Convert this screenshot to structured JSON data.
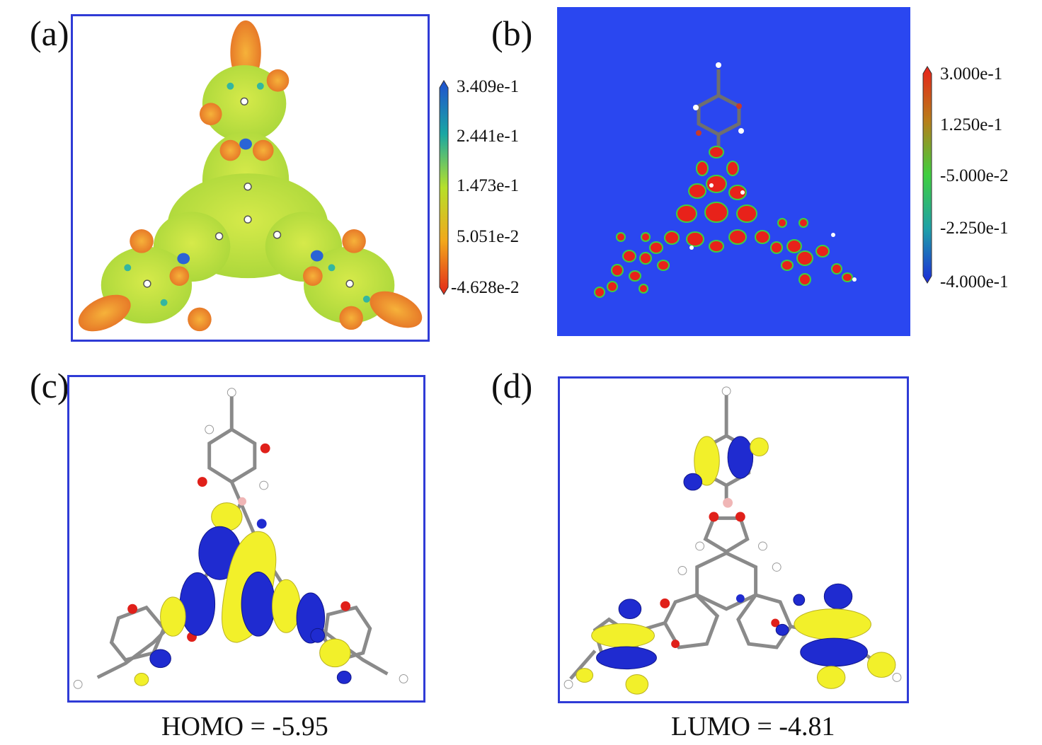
{
  "panels": {
    "a": {
      "label": "(a)",
      "colorbar": {
        "ticks": [
          "3.409e-1",
          "2.441e-1",
          "1.473e-1",
          "5.051e-2",
          "-4.628e-2"
        ],
        "colors": [
          "#1f4fd0",
          "#1aa7a3",
          "#b6e02a",
          "#f2a81c",
          "#e2281a"
        ]
      }
    },
    "b": {
      "label": "(b)",
      "background": "#2a47f0",
      "colorbar": {
        "ticks": [
          "3.000e-1",
          "1.250e-1",
          "-5.000e-2",
          "-2.250e-1",
          "-4.000e-1"
        ],
        "colors": [
          "#e8221a",
          "#b87e1a",
          "#3fcf3f",
          "#1ea0a8",
          "#1c2bd8"
        ]
      }
    },
    "c": {
      "label": "(c)",
      "caption": "HOMO = -5.95"
    },
    "d": {
      "label": "(d)",
      "caption": "LUMO = -4.81"
    }
  },
  "colors": {
    "frame": "#2f3bd6",
    "orbital_positive": "#f2f02a",
    "orbital_negative": "#1f2bd0",
    "carbon": "#8a8a8a",
    "oxygen": "#e0201a",
    "nitrogen": "#1f2bd0",
    "hydrogen": "#ffffff",
    "boron": "#f0b6b6"
  }
}
